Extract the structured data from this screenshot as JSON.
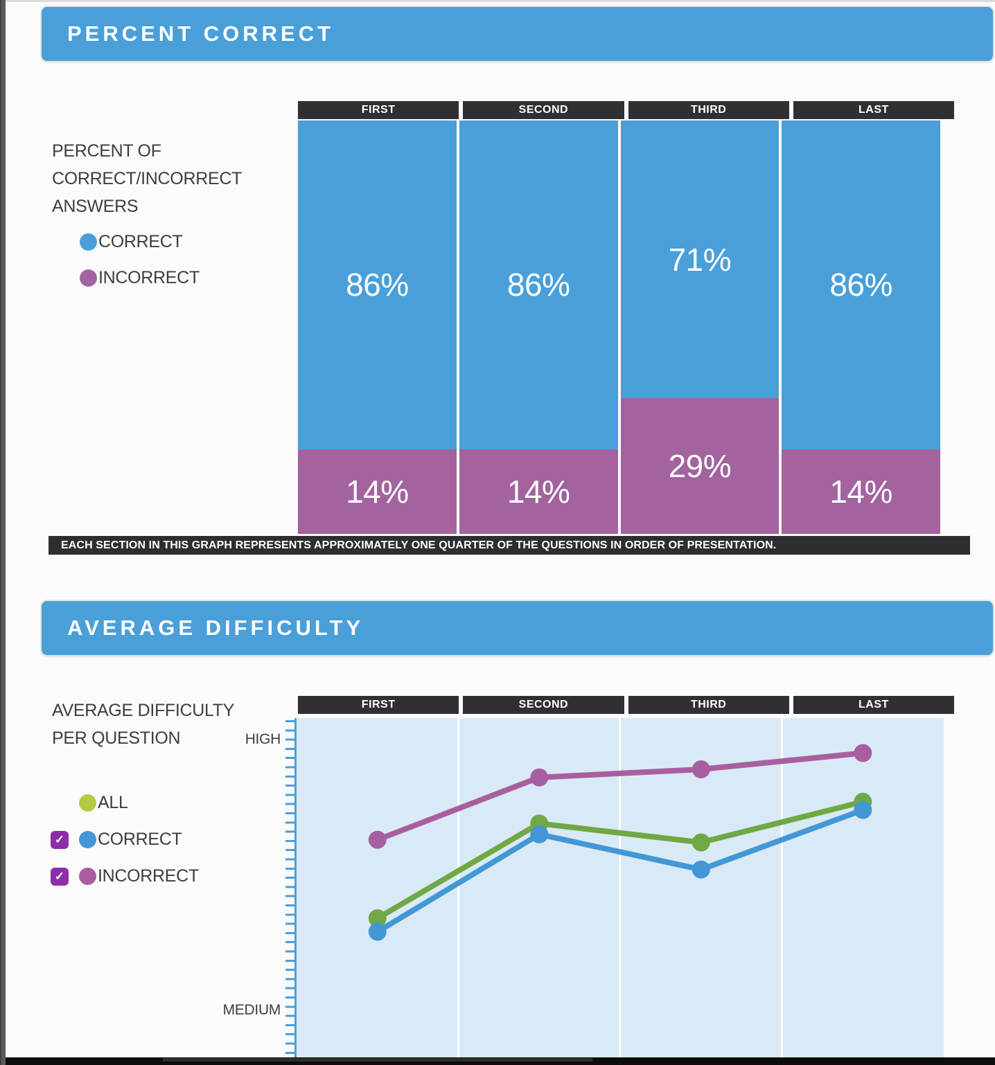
{
  "sections": {
    "percent_correct": {
      "header": "PERCENT CORRECT",
      "sidebar_label": "PERCENT OF CORRECT/INCORRECT ANSWERS",
      "legend": [
        {
          "label": "CORRECT",
          "color": "#4a9fd9"
        },
        {
          "label": "INCORRECT",
          "color": "#a2639e"
        }
      ],
      "caption": "EACH SECTION IN THIS GRAPH REPRESENTS APPROXIMATELY ONE QUARTER OF THE QUESTIONS IN ORDER OF PRESENTATION."
    },
    "average_difficulty": {
      "header": "AVERAGE DIFFICULTY",
      "sidebar_label": "AVERAGE DIFFICULTY PER QUESTION",
      "legend": [
        {
          "label": "ALL",
          "color": "#b5c945",
          "has_checkbox": false,
          "checked": false
        },
        {
          "label": "CORRECT",
          "color": "#4397d5",
          "has_checkbox": true,
          "checked": true
        },
        {
          "label": "INCORRECT",
          "color": "#a85fa0",
          "has_checkbox": true,
          "checked": true
        }
      ],
      "y_axis_labels": {
        "top": "HIGH",
        "bottom": "MEDIUM"
      }
    }
  },
  "chart_data": [
    {
      "id": "percent_correct",
      "type": "bar",
      "stacked": true,
      "title": "PERCENT CORRECT",
      "categories": [
        "FIRST",
        "SECOND",
        "THIRD",
        "LAST"
      ],
      "series": [
        {
          "name": "CORRECT",
          "color": "#4a9fd9",
          "values": [
            86,
            86,
            71,
            86
          ]
        },
        {
          "name": "INCORRECT",
          "color": "#a2639e",
          "values": [
            14,
            14,
            29,
            14
          ]
        }
      ],
      "value_format": "percent",
      "ylim": [
        0,
        100
      ],
      "legend_position": "left",
      "grid": false,
      "note": "Each column is one quarter of the questions in order of presentation; CORRECT segment on top, INCORRECT below, labels centered in segments."
    },
    {
      "id": "average_difficulty",
      "type": "line",
      "title": "AVERAGE DIFFICULTY",
      "categories": [
        "FIRST",
        "SECOND",
        "THIRD",
        "LAST"
      ],
      "y_axis": {
        "top_label": "HIGH",
        "bottom_label": "MEDIUM",
        "scale": "estimated, MEDIUM=2 to HIGH=3"
      },
      "ylim": [
        1.93,
        3.08
      ],
      "series": [
        {
          "name": "ALL",
          "color": "#70a845",
          "values": [
            2.34,
            2.69,
            2.62,
            2.77
          ]
        },
        {
          "name": "CORRECT",
          "color": "#4397d5",
          "values": [
            2.29,
            2.65,
            2.52,
            2.74
          ]
        },
        {
          "name": "INCORRECT",
          "color": "#a85fa0",
          "values": [
            2.63,
            2.86,
            2.89,
            2.95
          ]
        }
      ],
      "legend_position": "left",
      "grid": "vertical-column-separators",
      "plot_bg": "#d9eaf6"
    }
  ],
  "colors": {
    "accent_blue": "#4a9fd9",
    "bar_purple": "#a2639e",
    "line_green": "#70a845",
    "line_blue": "#4397d5",
    "line_purple": "#a85fa0",
    "header_dark": "#303034",
    "caption_dark": "#2e2e31",
    "plot_background": "#d9eaf6",
    "checkbox_purple": "#8e2da9",
    "axis_tick_blue": "#4a9edb"
  },
  "misc": {
    "checkmark": "✓"
  }
}
